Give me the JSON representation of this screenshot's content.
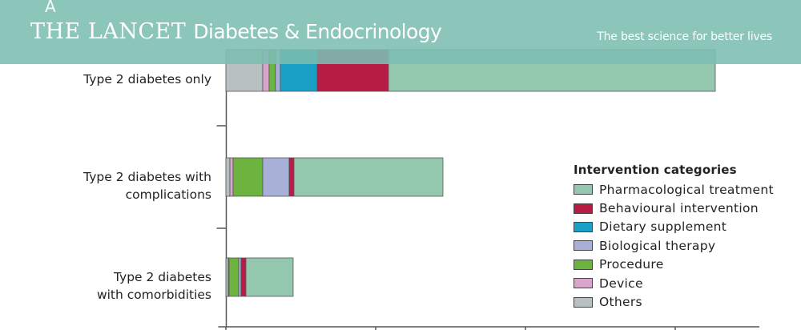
{
  "header": {
    "panel_letter": "A",
    "journal_main": "THE LANCET",
    "journal_sub": "Diabetes & Endocrinology",
    "tagline": "The best science for better lives"
  },
  "legend": {
    "title": "Intervention categories"
  },
  "colors": {
    "pharmacological": "#93c7ae",
    "behavioural": "#b71c44",
    "dietary": "#1a9fc7",
    "biological": "#a8b0d8",
    "procedure": "#6db33f",
    "device": "#d8a6cc",
    "others": "#b8c0c2"
  },
  "chart_data": {
    "type": "bar",
    "orientation": "horizontal",
    "stacked": true,
    "categories": [
      [
        "Type 2 diabetes only"
      ],
      [
        "Type 2 diabetes with",
        "complications"
      ],
      [
        "Type 2 diabetes",
        "with comorbidities"
      ]
    ],
    "series": [
      {
        "name": "Others",
        "color": "#b8c0c2",
        "values": [
          46,
          5,
          3
        ]
      },
      {
        "name": "Device",
        "color": "#d8a6cc",
        "values": [
          8,
          4,
          1
        ]
      },
      {
        "name": "Procedure",
        "color": "#6db33f",
        "values": [
          8,
          37,
          12
        ]
      },
      {
        "name": "Biological therapy",
        "color": "#a8b0d8",
        "values": [
          6,
          33,
          3
        ]
      },
      {
        "name": "Dietary supplement",
        "color": "#1a9fc7",
        "values": [
          46,
          0,
          0
        ]
      },
      {
        "name": "Behavioural intervention",
        "color": "#b71c44",
        "values": [
          89,
          6,
          6
        ]
      },
      {
        "name": "Pharmacological treatment",
        "color": "#93c7ae",
        "values": [
          408,
          186,
          59
        ]
      }
    ],
    "legend_order": [
      "Pharmacological treatment",
      "Behavioural intervention",
      "Dietary supplement",
      "Biological therapy",
      "Procedure",
      "Device",
      "Others"
    ],
    "xlim": [
      0,
      650
    ],
    "x_tick_values": [
      0,
      187,
      374,
      561
    ],
    "legend_position": "right",
    "grid": false
  }
}
